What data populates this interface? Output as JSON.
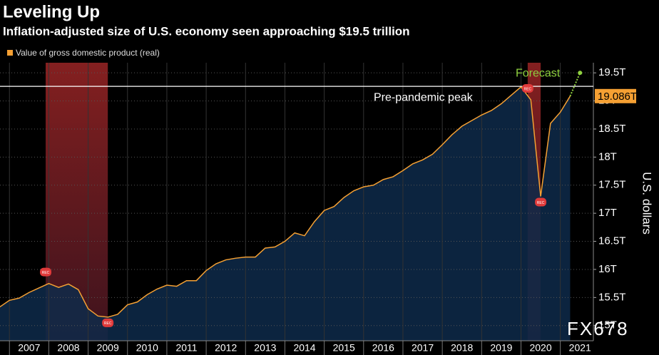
{
  "chart_data": {
    "type": "area",
    "title": "Leveling Up",
    "subtitle": "Inflation-adjusted size of U.S. economy seen approaching $19.5 trillion",
    "y_axis_label": "U.S. dollars",
    "watermark": "FX678",
    "xlim": [
      2006.76,
      2021.84
    ],
    "xticks": [
      2007,
      2008,
      2009,
      2010,
      2011,
      2012,
      2013,
      2014,
      2015,
      2016,
      2017,
      2018,
      2019,
      2020,
      2021
    ],
    "ylim": [
      14.73,
      19.68
    ],
    "yticks": [
      {
        "value": 15,
        "label": "15T"
      },
      {
        "value": 15.5,
        "label": "15.5T"
      },
      {
        "value": 16,
        "label": "16T"
      },
      {
        "value": 16.5,
        "label": "16.5T"
      },
      {
        "value": 17,
        "label": "17T"
      },
      {
        "value": 17.5,
        "label": "17.5T"
      },
      {
        "value": 18,
        "label": "18T"
      },
      {
        "value": 18.5,
        "label": "18.5T"
      },
      {
        "value": 19,
        "label": "19T"
      },
      {
        "value": 19.5,
        "label": "19.5T"
      }
    ],
    "grid": true,
    "series": [
      {
        "name": "Value of gross domestic product (real)",
        "color": "#f5a033",
        "x": [
          2006.75,
          2007.0,
          2007.25,
          2007.5,
          2007.75,
          2008.0,
          2008.25,
          2008.5,
          2008.75,
          2009.0,
          2009.25,
          2009.5,
          2009.75,
          2010.0,
          2010.25,
          2010.5,
          2010.75,
          2011.0,
          2011.25,
          2011.5,
          2011.75,
          2012.0,
          2012.25,
          2012.5,
          2012.75,
          2013.0,
          2013.25,
          2013.5,
          2013.75,
          2014.0,
          2014.25,
          2014.5,
          2014.75,
          2015.0,
          2015.25,
          2015.5,
          2015.75,
          2016.0,
          2016.25,
          2016.5,
          2016.75,
          2017.0,
          2017.25,
          2017.5,
          2017.75,
          2018.0,
          2018.25,
          2018.5,
          2018.75,
          2019.0,
          2019.25,
          2019.5,
          2019.75,
          2020.0,
          2020.25,
          2020.5,
          2020.75,
          2021.0,
          2021.25
        ],
        "values": [
          15.33,
          15.45,
          15.49,
          15.59,
          15.67,
          15.75,
          15.68,
          15.74,
          15.64,
          15.3,
          15.17,
          15.15,
          15.2,
          15.37,
          15.42,
          15.55,
          15.65,
          15.72,
          15.7,
          15.8,
          15.8,
          15.98,
          16.1,
          16.17,
          16.2,
          16.22,
          16.22,
          16.38,
          16.4,
          16.5,
          16.65,
          16.6,
          16.85,
          17.05,
          17.12,
          17.28,
          17.4,
          17.47,
          17.5,
          17.6,
          17.65,
          17.76,
          17.88,
          17.95,
          18.05,
          18.22,
          18.4,
          18.55,
          18.65,
          18.75,
          18.83,
          18.95,
          19.1,
          19.25,
          19.02,
          17.3,
          18.6,
          18.8,
          19.086
        ],
        "last_value_label": "19.086T"
      }
    ],
    "forecast": {
      "label": "Forecast",
      "color": "#8fd13f",
      "x": [
        2021.25,
        2021.5
      ],
      "values": [
        19.086,
        19.5
      ]
    },
    "reference_line": {
      "value": 19.26,
      "label": "Pre-pandemic peak"
    },
    "recessions": [
      {
        "start": 2007.92,
        "end": 2009.5
      },
      {
        "start": 2020.17,
        "end": 2020.5
      }
    ],
    "recession_label": "REC"
  }
}
